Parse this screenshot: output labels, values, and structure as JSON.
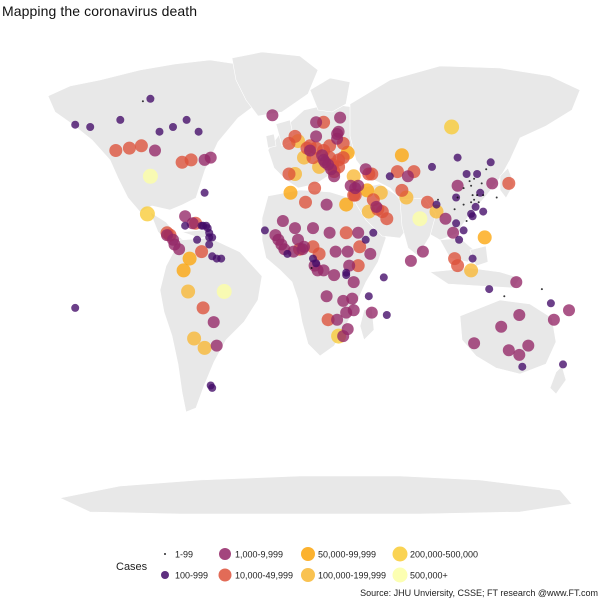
{
  "chart_data": {
    "type": "scatter",
    "title": "Mapping the coronavirus death",
    "source": "Source: JHU Unviersity, CSSE; FT research @www.FT.com",
    "legend": {
      "title": "Cases",
      "placement": "bottom",
      "entries": [
        {
          "label": "1-99",
          "bin": 0
        },
        {
          "label": "100-999",
          "bin": 1
        },
        {
          "label": "1,000-9,999",
          "bin": 2
        },
        {
          "label": "10,000-49,999",
          "bin": 3
        },
        {
          "label": "50,000-99,999",
          "bin": 4
        },
        {
          "label": "100,000-199,999",
          "bin": 5
        },
        {
          "label": "200,000-500,000",
          "bin": 6
        },
        {
          "label": "500,000+",
          "bin": 7
        }
      ]
    },
    "bin_colors": [
      "#000004",
      "#420a68",
      "#932667",
      "#dd513a",
      "#fca50a",
      "#f8b733",
      "#f9cb35",
      "#fcffa4"
    ],
    "bin_sizes": [
      1,
      4,
      6,
      6.5,
      7,
      7,
      7.5,
      7.5
    ],
    "xlim": [
      -180,
      180
    ],
    "ylim": [
      -60,
      85
    ],
    "series": [
      {
        "lon": -150,
        "lat": 61,
        "bin": 1
      },
      {
        "lon": -140,
        "lat": 60,
        "bin": 1
      },
      {
        "lon": -120,
        "lat": 63,
        "bin": 1
      },
      {
        "lon": -105,
        "lat": 71,
        "bin": 0
      },
      {
        "lon": -100,
        "lat": 72,
        "bin": 1
      },
      {
        "lon": -94,
        "lat": 58,
        "bin": 1
      },
      {
        "lon": -85,
        "lat": 60,
        "bin": 1
      },
      {
        "lon": -76,
        "lat": 63,
        "bin": 1
      },
      {
        "lon": -68,
        "lat": 58,
        "bin": 1
      },
      {
        "lon": -123,
        "lat": 50,
        "bin": 3
      },
      {
        "lon": -114,
        "lat": 51,
        "bin": 3
      },
      {
        "lon": -106,
        "lat": 52,
        "bin": 3
      },
      {
        "lon": -97,
        "lat": 50,
        "bin": 2
      },
      {
        "lon": -79,
        "lat": 45,
        "bin": 3
      },
      {
        "lon": -73,
        "lat": 46,
        "bin": 3
      },
      {
        "lon": -64,
        "lat": 46,
        "bin": 2
      },
      {
        "lon": -60,
        "lat": 47,
        "bin": 2
      },
      {
        "lon": -100,
        "lat": 39,
        "bin": 7
      },
      {
        "lon": -102,
        "lat": 23,
        "bin": 6
      },
      {
        "lon": -89,
        "lat": 15,
        "bin": 3
      },
      {
        "lon": -87,
        "lat": 14,
        "bin": 3
      },
      {
        "lon": -85,
        "lat": 12,
        "bin": 2
      },
      {
        "lon": -84,
        "lat": 10,
        "bin": 2
      },
      {
        "lon": -81,
        "lat": 8,
        "bin": 2
      },
      {
        "lon": -89,
        "lat": 14,
        "bin": 2
      },
      {
        "lon": -77,
        "lat": 22,
        "bin": 2
      },
      {
        "lon": -77,
        "lat": 18,
        "bin": 1
      },
      {
        "lon": -72,
        "lat": 19,
        "bin": 2
      },
      {
        "lon": -70,
        "lat": 19,
        "bin": 3
      },
      {
        "lon": -66,
        "lat": 18,
        "bin": 1
      },
      {
        "lon": -64,
        "lat": 32,
        "bin": 1
      },
      {
        "lon": -62,
        "lat": 17,
        "bin": 1
      },
      {
        "lon": -61,
        "lat": 15,
        "bin": 1
      },
      {
        "lon": -61,
        "lat": 13,
        "bin": 1
      },
      {
        "lon": -59,
        "lat": 13,
        "bin": 1
      },
      {
        "lon": -61,
        "lat": 10,
        "bin": 1
      },
      {
        "lon": -65,
        "lat": 18,
        "bin": 1
      },
      {
        "lon": -63,
        "lat": 18,
        "bin": 1
      },
      {
        "lon": -69,
        "lat": 12,
        "bin": 1
      },
      {
        "lon": -74,
        "lat": 4,
        "bin": 4
      },
      {
        "lon": -66,
        "lat": 7,
        "bin": 3
      },
      {
        "lon": -59,
        "lat": 5,
        "bin": 1
      },
      {
        "lon": -56,
        "lat": 4,
        "bin": 1
      },
      {
        "lon": -53,
        "lat": 4,
        "bin": 1
      },
      {
        "lon": -78,
        "lat": -1,
        "bin": 4
      },
      {
        "lon": -75,
        "lat": -10,
        "bin": 5
      },
      {
        "lon": -65,
        "lat": -17,
        "bin": 3
      },
      {
        "lon": -51,
        "lat": -10,
        "bin": 7
      },
      {
        "lon": -71,
        "lat": -30,
        "bin": 5
      },
      {
        "lon": -58,
        "lat": -23,
        "bin": 2
      },
      {
        "lon": -56,
        "lat": -33,
        "bin": 2
      },
      {
        "lon": -64,
        "lat": -34,
        "bin": 5
      },
      {
        "lon": -59,
        "lat": -51,
        "bin": 1
      },
      {
        "lon": -60,
        "lat": -50,
        "bin": 1
      },
      {
        "lon": -19,
        "lat": 65,
        "bin": 2
      },
      {
        "lon": -8,
        "lat": 53,
        "bin": 3
      },
      {
        "lon": -2,
        "lat": 54,
        "bin": 5
      },
      {
        "lon": -4,
        "lat": 56,
        "bin": 3
      },
      {
        "lon": -8,
        "lat": 40,
        "bin": 3
      },
      {
        "lon": -4,
        "lat": 40,
        "bin": 5
      },
      {
        "lon": 2,
        "lat": 47,
        "bin": 5
      },
      {
        "lon": 4,
        "lat": 51,
        "bin": 3
      },
      {
        "lon": 6,
        "lat": 52,
        "bin": 3
      },
      {
        "lon": 6,
        "lat": 50,
        "bin": 2
      },
      {
        "lon": 8,
        "lat": 47,
        "bin": 3
      },
      {
        "lon": 10,
        "lat": 51,
        "bin": 3
      },
      {
        "lon": 12,
        "lat": 43,
        "bin": 5
      },
      {
        "lon": 14,
        "lat": 48,
        "bin": 2
      },
      {
        "lon": 15,
        "lat": 50,
        "bin": 3
      },
      {
        "lon": 19,
        "lat": 52,
        "bin": 3
      },
      {
        "lon": 19,
        "lat": 47,
        "bin": 3
      },
      {
        "lon": 15,
        "lat": 46,
        "bin": 2
      },
      {
        "lon": 16,
        "lat": 45,
        "bin": 2
      },
      {
        "lon": 18,
        "lat": 44,
        "bin": 2
      },
      {
        "lon": 21,
        "lat": 44,
        "bin": 3
      },
      {
        "lon": 20,
        "lat": 42,
        "bin": 2
      },
      {
        "lon": 22,
        "lat": 41,
        "bin": 3
      },
      {
        "lon": 25,
        "lat": 43,
        "bin": 3
      },
      {
        "lon": 25,
        "lat": 46,
        "bin": 3
      },
      {
        "lon": 22,
        "lat": 39,
        "bin": 2
      },
      {
        "lon": 33,
        "lat": 35,
        "bin": 2
      },
      {
        "lon": 10,
        "lat": 62,
        "bin": 2
      },
      {
        "lon": 15,
        "lat": 62,
        "bin": 3
      },
      {
        "lon": 26,
        "lat": 64,
        "bin": 2
      },
      {
        "lon": 25,
        "lat": 58,
        "bin": 2
      },
      {
        "lon": 24,
        "lat": 57,
        "bin": 2
      },
      {
        "lon": 24,
        "lat": 55,
        "bin": 2
      },
      {
        "lon": 28,
        "lat": 53,
        "bin": 3
      },
      {
        "lon": 31,
        "lat": 49,
        "bin": 4
      },
      {
        "lon": 28,
        "lat": 47,
        "bin": 3
      },
      {
        "lon": 10,
        "lat": 56,
        "bin": 2
      },
      {
        "lon": 100,
        "lat": 60,
        "bin": 6
      },
      {
        "lon": 35,
        "lat": 39,
        "bin": 5
      },
      {
        "lon": 43,
        "lat": 42,
        "bin": 2
      },
      {
        "lon": 45,
        "lat": 40,
        "bin": 3
      },
      {
        "lon": 47,
        "lat": 40,
        "bin": 3
      },
      {
        "lon": 53,
        "lat": 32,
        "bin": 5
      },
      {
        "lon": 44,
        "lat": 33,
        "bin": 4
      },
      {
        "lon": 38,
        "lat": 35,
        "bin": 2
      },
      {
        "lon": 36,
        "lat": 34,
        "bin": 2
      },
      {
        "lon": 35,
        "lat": 31,
        "bin": 3
      },
      {
        "lon": 36,
        "lat": 31,
        "bin": 3
      },
      {
        "lon": 45,
        "lat": 24,
        "bin": 5
      },
      {
        "lon": 48,
        "lat": 29,
        "bin": 3
      },
      {
        "lon": 50,
        "lat": 26,
        "bin": 2
      },
      {
        "lon": 51,
        "lat": 25,
        "bin": 3
      },
      {
        "lon": 54,
        "lat": 24,
        "bin": 3
      },
      {
        "lon": 57,
        "lat": 21,
        "bin": 3
      },
      {
        "lon": 48,
        "lat": 15,
        "bin": 1
      },
      {
        "lon": 67,
        "lat": 48,
        "bin": 4
      },
      {
        "lon": 75,
        "lat": 41,
        "bin": 3
      },
      {
        "lon": 64,
        "lat": 41,
        "bin": 3
      },
      {
        "lon": 59,
        "lat": 39,
        "bin": 1
      },
      {
        "lon": 71,
        "lat": 39,
        "bin": 2
      },
      {
        "lon": 67,
        "lat": 33,
        "bin": 3
      },
      {
        "lon": 70,
        "lat": 30,
        "bin": 5
      },
      {
        "lon": 79,
        "lat": 21,
        "bin": 7
      },
      {
        "lon": 84,
        "lat": 28,
        "bin": 3
      },
      {
        "lon": 90,
        "lat": 27,
        "bin": 1
      },
      {
        "lon": 90,
        "lat": 24,
        "bin": 5
      },
      {
        "lon": 81,
        "lat": 7,
        "bin": 2
      },
      {
        "lon": 73,
        "lat": 3,
        "bin": 2
      },
      {
        "lon": 96,
        "lat": 21,
        "bin": 2
      },
      {
        "lon": 101,
        "lat": 15,
        "bin": 2
      },
      {
        "lon": 105,
        "lat": 12,
        "bin": 1
      },
      {
        "lon": 103,
        "lat": 19,
        "bin": 1
      },
      {
        "lon": 108,
        "lat": 16,
        "bin": 1
      },
      {
        "lon": 102,
        "lat": 4,
        "bin": 3
      },
      {
        "lon": 104,
        "lat": 1,
        "bin": 3
      },
      {
        "lon": 114,
        "lat": 4,
        "bin": 1
      },
      {
        "lon": 113,
        "lat": -1,
        "bin": 5
      },
      {
        "lon": 122,
        "lat": 13,
        "bin": 4
      },
      {
        "lon": 125,
        "lat": -9,
        "bin": 1
      },
      {
        "lon": 143,
        "lat": -6,
        "bin": 2
      },
      {
        "lon": 104,
        "lat": 35,
        "bin": 2
      },
      {
        "lon": 104,
        "lat": 47,
        "bin": 1
      },
      {
        "lon": 113,
        "lat": 35,
        "bin": 0
      },
      {
        "lon": 114,
        "lat": 31,
        "bin": 0
      },
      {
        "lon": 117,
        "lat": 40,
        "bin": 1
      },
      {
        "lon": 121,
        "lat": 31,
        "bin": 0
      },
      {
        "lon": 113,
        "lat": 23,
        "bin": 1
      },
      {
        "lon": 114,
        "lat": 22,
        "bin": 1
      },
      {
        "lon": 121,
        "lat": 24,
        "bin": 1
      },
      {
        "lon": 126,
        "lat": 45,
        "bin": 1
      },
      {
        "lon": 127,
        "lat": 36,
        "bin": 2
      },
      {
        "lon": 138,
        "lat": 36,
        "bin": 3
      },
      {
        "lon": 130,
        "lat": 30,
        "bin": 0
      },
      {
        "lon": 110,
        "lat": 20,
        "bin": 0
      },
      {
        "lon": 108,
        "lat": 27,
        "bin": 0
      },
      {
        "lon": 102,
        "lat": 25,
        "bin": 0
      },
      {
        "lon": 118,
        "lat": 28,
        "bin": 0
      },
      {
        "lon": 115,
        "lat": 38,
        "bin": 0
      },
      {
        "lon": 123,
        "lat": 42,
        "bin": 0
      },
      {
        "lon": 112,
        "lat": 37,
        "bin": 0
      },
      {
        "lon": 108,
        "lat": 34,
        "bin": 0
      },
      {
        "lon": 103,
        "lat": 30,
        "bin": 1
      },
      {
        "lon": 120,
        "lat": 36,
        "bin": 0
      },
      {
        "lon": 119,
        "lat": 32,
        "bin": 1
      },
      {
        "lon": 104,
        "lat": 30,
        "bin": 0
      },
      {
        "lon": 87,
        "lat": 43,
        "bin": 1
      },
      {
        "lon": 91,
        "lat": 29,
        "bin": 0
      },
      {
        "lon": 110,
        "lat": 40,
        "bin": 1
      },
      {
        "lon": 113,
        "lat": 28,
        "bin": 0
      },
      {
        "lon": 115,
        "lat": 29,
        "bin": 0
      },
      {
        "lon": 117,
        "lat": 31,
        "bin": 0
      },
      {
        "lon": 116,
        "lat": 26,
        "bin": 1
      },
      {
        "lon": 115,
        "lat": -32,
        "bin": 2
      },
      {
        "lon": 133,
        "lat": -25,
        "bin": 2
      },
      {
        "lon": 135,
        "lat": -12,
        "bin": 0
      },
      {
        "lon": 145,
        "lat": -20,
        "bin": 2
      },
      {
        "lon": 151,
        "lat": -33,
        "bin": 2
      },
      {
        "lon": 145,
        "lat": -37,
        "bin": 2
      },
      {
        "lon": 147,
        "lat": -42,
        "bin": 1
      },
      {
        "lon": 138,
        "lat": -35,
        "bin": 2
      },
      {
        "lon": 174,
        "lat": -41,
        "bin": 1
      },
      {
        "lon": 168,
        "lat": -22,
        "bin": 2
      },
      {
        "lon": 178,
        "lat": -18,
        "bin": 2
      },
      {
        "lon": 160,
        "lat": -9,
        "bin": 0
      },
      {
        "lon": 166,
        "lat": -15,
        "bin": 1
      },
      {
        "lon": -150,
        "lat": -17,
        "bin": 1
      },
      {
        "lon": -17,
        "lat": 14,
        "bin": 2
      },
      {
        "lon": -15,
        "lat": 12,
        "bin": 2
      },
      {
        "lon": -13,
        "lat": 10,
        "bin": 2
      },
      {
        "lon": -11,
        "lat": 8,
        "bin": 2
      },
      {
        "lon": -9,
        "lat": 6,
        "bin": 1
      },
      {
        "lon": -5,
        "lat": 7,
        "bin": 2
      },
      {
        "lon": -1,
        "lat": 8,
        "bin": 3
      },
      {
        "lon": 1,
        "lat": 8,
        "bin": 2
      },
      {
        "lon": 2,
        "lat": 9,
        "bin": 2
      },
      {
        "lon": 8,
        "lat": 9,
        "bin": 3
      },
      {
        "lon": -2,
        "lat": 12,
        "bin": 2
      },
      {
        "lon": -4,
        "lat": 17,
        "bin": 2
      },
      {
        "lon": 8,
        "lat": 17,
        "bin": 2
      },
      {
        "lon": 19,
        "lat": 15,
        "bin": 2
      },
      {
        "lon": 23,
        "lat": 7,
        "bin": 2
      },
      {
        "lon": 12,
        "lat": 6,
        "bin": 3
      },
      {
        "lon": 9,
        "lat": 1,
        "bin": 2
      },
      {
        "lon": 11,
        "lat": -1,
        "bin": 2
      },
      {
        "lon": 15,
        "lat": -1,
        "bin": 2
      },
      {
        "lon": 22,
        "lat": -3,
        "bin": 2
      },
      {
        "lon": 30,
        "lat": -2,
        "bin": 1
      },
      {
        "lon": 30,
        "lat": -3,
        "bin": 1
      },
      {
        "lon": 32,
        "lat": 1,
        "bin": 2
      },
      {
        "lon": 38,
        "lat": 1,
        "bin": 3
      },
      {
        "lon": 35,
        "lat": -6,
        "bin": 2
      },
      {
        "lon": 34,
        "lat": -13,
        "bin": 2
      },
      {
        "lon": 28,
        "lat": -14,
        "bin": 2
      },
      {
        "lon": 30,
        "lat": -19,
        "bin": 2
      },
      {
        "lon": 35,
        "lat": -18,
        "bin": 2
      },
      {
        "lon": 17,
        "lat": -12,
        "bin": 2
      },
      {
        "lon": 18,
        "lat": -22,
        "bin": 3
      },
      {
        "lon": 24,
        "lat": -22,
        "bin": 2
      },
      {
        "lon": 25,
        "lat": -29,
        "bin": 6
      },
      {
        "lon": 31,
        "lat": -26,
        "bin": 2
      },
      {
        "lon": 28,
        "lat": -29,
        "bin": 2
      },
      {
        "lon": 47,
        "lat": -19,
        "bin": 2
      },
      {
        "lon": 57,
        "lat": -20,
        "bin": 1
      },
      {
        "lon": 55,
        "lat": -4,
        "bin": 1
      },
      {
        "lon": 45,
        "lat": -12,
        "bin": 1
      },
      {
        "lon": 43,
        "lat": 12,
        "bin": 1
      },
      {
        "lon": 39,
        "lat": 9,
        "bin": 3
      },
      {
        "lon": 46,
        "lat": 6,
        "bin": 2
      },
      {
        "lon": 38,
        "lat": 15,
        "bin": 2
      },
      {
        "lon": 30,
        "lat": 15,
        "bin": 3
      },
      {
        "lon": 31,
        "lat": 7,
        "bin": 2
      },
      {
        "lon": 30,
        "lat": 27,
        "bin": 4
      },
      {
        "lon": 17,
        "lat": 27,
        "bin": 2
      },
      {
        "lon": 9,
        "lat": 34,
        "bin": 3
      },
      {
        "lon": 3,
        "lat": 28,
        "bin": 3
      },
      {
        "lon": -7,
        "lat": 32,
        "bin": 4
      },
      {
        "lon": -12,
        "lat": 20,
        "bin": 2
      },
      {
        "lon": -24,
        "lat": 16,
        "bin": 1
      },
      {
        "lon": 7,
        "lat": 0,
        "bin": 0
      },
      {
        "lon": 8,
        "lat": 4,
        "bin": 1
      },
      {
        "lon": 10,
        "lat": 2,
        "bin": 1
      }
    ]
  }
}
